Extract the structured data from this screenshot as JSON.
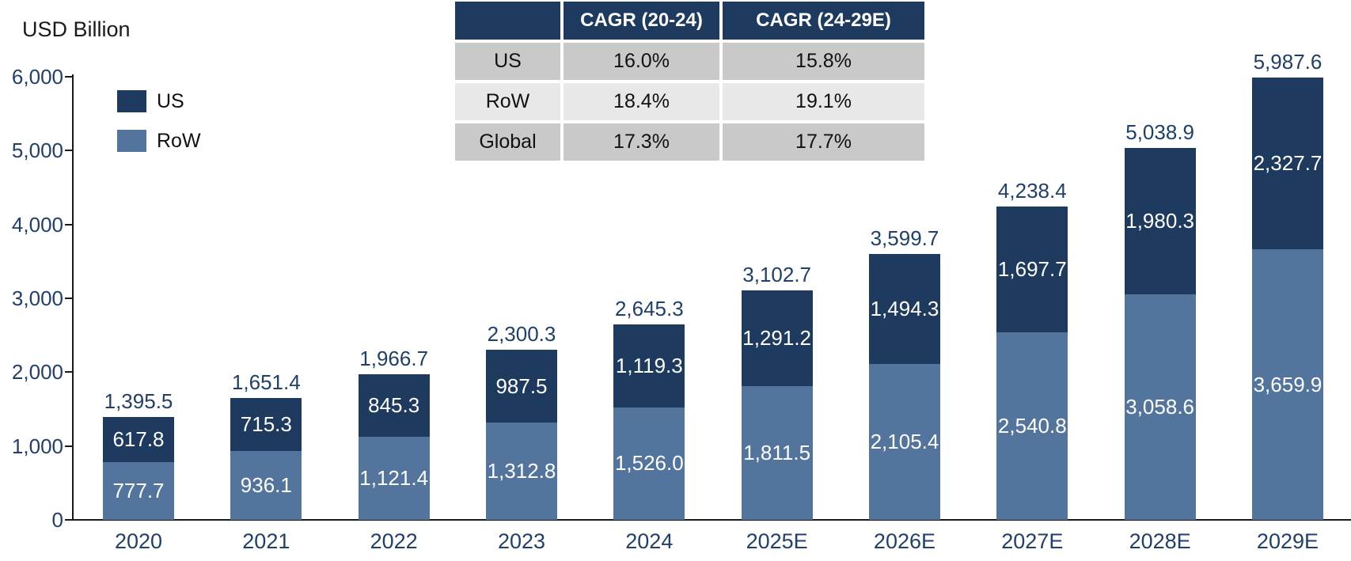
{
  "header": {
    "axis_title": "USD Billion"
  },
  "colors": {
    "us": "#1E3A5E",
    "row": "#53759D",
    "label_text": "#20406B",
    "axis": "#1a1a1a",
    "table_header_bg": "#1E3A5E",
    "table_header_text": "#ffffff",
    "table_row_dark": "#C9C9C9",
    "table_row_light": "#E8E8E8"
  },
  "legend": [
    {
      "label": "US",
      "color": "#1E3A5E"
    },
    {
      "label": "RoW",
      "color": "#53759D"
    }
  ],
  "cagr_table": {
    "header": [
      "",
      "CAGR (20-24)",
      "CAGR (24-29E)"
    ],
    "rows": [
      [
        "US",
        "16.0%",
        "15.8%"
      ],
      [
        "RoW",
        "18.4%",
        "19.1%"
      ],
      [
        "Global",
        "17.3%",
        "17.7%"
      ]
    ]
  },
  "chart_data": {
    "type": "bar",
    "stacked": true,
    "title": "",
    "xlabel": "",
    "ylabel": "USD Billion",
    "ylim": [
      0,
      6000
    ],
    "ytick_interval": 1000,
    "ytick_labels": [
      "0",
      "1,000",
      "2,000",
      "3,000",
      "4,000",
      "5,000",
      "6,000"
    ],
    "grid": false,
    "legend_position": "top-left",
    "categories": [
      "2020",
      "2021",
      "2022",
      "2023",
      "2024",
      "2025E",
      "2026E",
      "2027E",
      "2028E",
      "2029E"
    ],
    "series": [
      {
        "name": "RoW",
        "color": "#53759D",
        "values": [
          777.7,
          936.1,
          1121.4,
          1312.8,
          1526.0,
          1811.5,
          2105.4,
          2540.8,
          3058.6,
          3659.9
        ],
        "labels": [
          "777.7",
          "936.1",
          "1,121.4",
          "1,312.8",
          "1,526.0",
          "1,811.5",
          "2,105.4",
          "2,540.8",
          "3,058.6",
          "3,659.9"
        ]
      },
      {
        "name": "US",
        "color": "#1E3A5E",
        "values": [
          617.8,
          715.3,
          845.3,
          987.5,
          1119.3,
          1291.2,
          1494.3,
          1697.7,
          1980.3,
          2327.7
        ],
        "labels": [
          "617.8",
          "715.3",
          "845.3",
          "987.5",
          "1,119.3",
          "1,291.2",
          "1,494.3",
          "1,697.7",
          "1,980.3",
          "2,327.7"
        ]
      }
    ],
    "totals": [
      1395.5,
      1651.4,
      1966.7,
      2300.3,
      2645.3,
      3102.7,
      3599.7,
      4238.4,
      5038.9,
      5987.6
    ],
    "total_labels": [
      "1,395.5",
      "1,651.4",
      "1,966.7",
      "2,300.3",
      "2,645.3",
      "3,102.7",
      "3,599.7",
      "4,238.4",
      "5,038.9",
      "5,987.6"
    ]
  }
}
